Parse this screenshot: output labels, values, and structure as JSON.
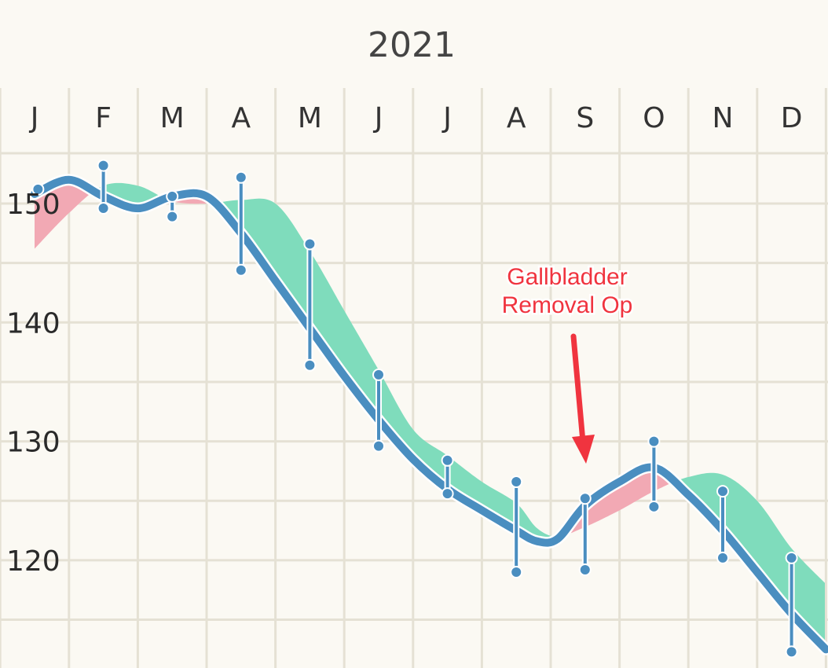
{
  "chart_data": {
    "type": "line",
    "title": "2021",
    "xlabel": "",
    "ylabel": "",
    "categories": [
      "J",
      "F",
      "M",
      "A",
      "M",
      "J",
      "J",
      "A",
      "S",
      "O",
      "N",
      "D"
    ],
    "y_ticks": [
      150,
      140,
      130,
      120
    ],
    "ylim": [
      112,
      157
    ],
    "grid": true,
    "colors": {
      "line": "#4a8ec0",
      "band_above": "#7fdcbc",
      "band_below": "#f2a9b4",
      "grid": "#e5e1d4",
      "annotation": "#f0343f"
    },
    "series": [
      {
        "role": "trend-line",
        "x": [
          0,
          0.5,
          1,
          1.5,
          2,
          2.5,
          3,
          3.5,
          4,
          4.5,
          5,
          5.5,
          6,
          6.5,
          7,
          7.3,
          7.6,
          8,
          8.5,
          9,
          9.5,
          10,
          10.5,
          11,
          11.5
        ],
        "values": [
          150.8,
          152.0,
          150.6,
          149.6,
          150.6,
          150.6,
          147.5,
          143.5,
          139.5,
          135.5,
          131.8,
          128.5,
          126.0,
          124.2,
          122.5,
          121.6,
          121.8,
          124.6,
          126.6,
          127.8,
          125.5,
          122.5,
          119.0,
          115.5,
          112.5
        ]
      },
      {
        "role": "smoothed-band",
        "x": [
          0,
          0.5,
          1,
          1.5,
          2,
          2.5,
          3,
          3.5,
          4,
          4.5,
          5,
          5.5,
          6,
          6.5,
          7,
          7.3,
          7.6,
          8,
          8.5,
          9,
          9.5,
          10,
          10.5,
          11,
          11.5
        ],
        "values": [
          146.2,
          149.2,
          151.5,
          151.5,
          150.2,
          150.0,
          150.3,
          150.0,
          146.0,
          141.0,
          136.0,
          131.0,
          128.8,
          126.6,
          124.8,
          122.7,
          122.0,
          122.8,
          124.2,
          125.8,
          127.0,
          127.2,
          125.0,
          121.0,
          118.0
        ]
      }
    ],
    "measurements": [
      {
        "x": 0.05,
        "high": 151.2,
        "low": 151.2
      },
      {
        "x": 1.0,
        "high": 153.2,
        "low": 149.6
      },
      {
        "x": 2.0,
        "high": 150.6,
        "low": 148.9
      },
      {
        "x": 3.0,
        "high": 152.2,
        "low": 144.4
      },
      {
        "x": 4.0,
        "high": 146.6,
        "low": 136.4
      },
      {
        "x": 5.0,
        "high": 135.6,
        "low": 129.6
      },
      {
        "x": 6.0,
        "high": 128.4,
        "low": 125.6
      },
      {
        "x": 7.0,
        "high": 126.6,
        "low": 119.0
      },
      {
        "x": 8.0,
        "high": 125.2,
        "low": 119.2
      },
      {
        "x": 9.0,
        "high": 130.0,
        "low": 124.5
      },
      {
        "x": 10.0,
        "high": 125.8,
        "low": 120.2
      },
      {
        "x": 11.0,
        "high": 120.2,
        "low": 112.3
      }
    ],
    "annotations": [
      {
        "text_lines": [
          "Gallbladder",
          "Removal Op"
        ],
        "x": 8.0,
        "y": 127.0
      }
    ]
  }
}
